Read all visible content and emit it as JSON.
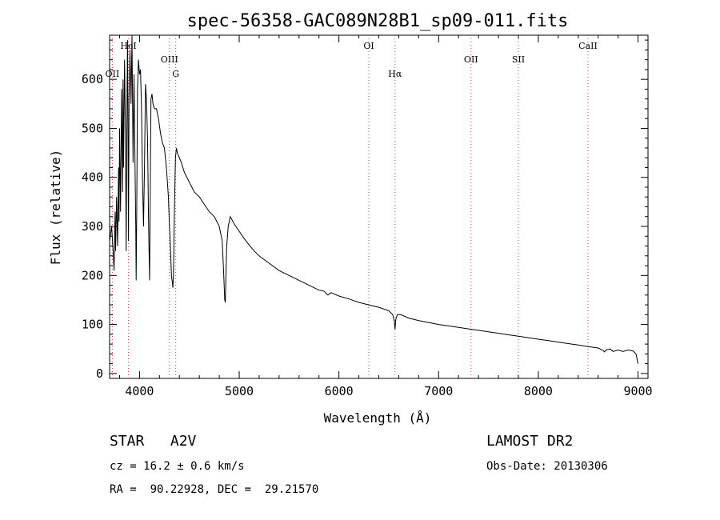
{
  "chart_data": {
    "type": "line",
    "title": "spec-56358-GAC089N28B1_sp09-011.fits",
    "xlabel": "Wavelength (Å)",
    "ylabel": "Flux (relative)",
    "xlim": [
      3700,
      9100
    ],
    "ylim": [
      -10,
      690
    ],
    "xticks": [
      4000,
      5000,
      6000,
      7000,
      8000,
      9000
    ],
    "yticks": [
      0,
      100,
      200,
      300,
      400,
      500,
      600
    ],
    "grid": false,
    "series": [
      {
        "color": "#000000",
        "x": [
          3700,
          3720,
          3735,
          3745,
          3755,
          3760,
          3770,
          3780,
          3790,
          3795,
          3800,
          3810,
          3820,
          3830,
          3835,
          3840,
          3850,
          3860,
          3866,
          3875,
          3880,
          3885,
          3889,
          3895,
          3905,
          3915,
          3925,
          3935,
          3945,
          3955,
          3962,
          3966,
          3972,
          3980,
          3990,
          4000,
          4010,
          4020,
          4030,
          4040,
          4050,
          4060,
          4070,
          4080,
          4090,
          4095,
          4101,
          4105,
          4115,
          4125,
          4135,
          4150,
          4170,
          4190,
          4210,
          4230,
          4250,
          4270,
          4290,
          4300,
          4310,
          4320,
          4330,
          4335,
          4340,
          4345,
          4350,
          4360,
          4370,
          4380,
          4400,
          4420,
          4450,
          4500,
          4550,
          4600,
          4650,
          4700,
          4750,
          4800,
          4830,
          4845,
          4855,
          4861,
          4867,
          4875,
          4890,
          4910,
          4950,
          5000,
          5050,
          5100,
          5150,
          5200,
          5300,
          5400,
          5500,
          5600,
          5700,
          5800,
          5850,
          5890,
          5920,
          6000,
          6100,
          6200,
          6300,
          6400,
          6500,
          6540,
          6555,
          6563,
          6570,
          6585,
          6620,
          6700,
          6800,
          6900,
          7000,
          7100,
          7200,
          7300,
          7400,
          7500,
          7600,
          7700,
          7800,
          7900,
          8000,
          8100,
          8200,
          8300,
          8400,
          8500,
          8600,
          8650,
          8662,
          8680,
          8720,
          8750,
          8800,
          8850,
          8900,
          8950,
          8980,
          8990,
          9000
        ],
        "y": [
          270,
          300,
          250,
          210,
          330,
          250,
          360,
          260,
          420,
          310,
          500,
          330,
          580,
          370,
          600,
          420,
          640,
          480,
          250,
          560,
          680,
          470,
          270,
          560,
          660,
          550,
          690,
          430,
          610,
          420,
          300,
          190,
          330,
          580,
          640,
          610,
          620,
          540,
          400,
          300,
          420,
          590,
          560,
          480,
          320,
          260,
          190,
          300,
          560,
          570,
          550,
          540,
          540,
          520,
          490,
          470,
          460,
          420,
          360,
          300,
          260,
          200,
          185,
          175,
          200,
          260,
          330,
          440,
          460,
          450,
          440,
          430,
          410,
          390,
          370,
          360,
          345,
          330,
          320,
          300,
          270,
          200,
          150,
          145,
          200,
          260,
          300,
          320,
          305,
          290,
          275,
          262,
          250,
          240,
          225,
          210,
          200,
          190,
          180,
          170,
          168,
          160,
          165,
          158,
          152,
          145,
          140,
          135,
          128,
          120,
          108,
          90,
          110,
          120,
          120,
          113,
          108,
          104,
          100,
          97,
          94,
          91,
          88,
          85,
          82,
          79,
          76,
          73,
          70,
          67,
          64,
          61,
          58,
          55,
          52,
          47,
          44,
          48,
          50,
          45,
          48,
          45,
          48,
          46,
          40,
          30,
          20
        ]
      }
    ],
    "spectral_lines": [
      {
        "label": "OII",
        "wavelength": 3727,
        "row": 3
      },
      {
        "label": "HeI",
        "wavelength": 3889,
        "row": 1
      },
      {
        "label": "OIII",
        "wavelength": 4300,
        "row": 2
      },
      {
        "label": "G",
        "wavelength": 4363,
        "row": 3
      },
      {
        "label": "OI",
        "wavelength": 6300,
        "row": 1
      },
      {
        "label": "Hα",
        "wavelength": 6563,
        "row": 3
      },
      {
        "label": "OII",
        "wavelength": 7325,
        "row": 2
      },
      {
        "label": "SII",
        "wavelength": 7800,
        "row": 2
      },
      {
        "label": "CaII",
        "wavelength": 8498,
        "row": 1
      }
    ]
  },
  "info": {
    "class_line": "STAR   A2V",
    "survey": "LAMOST DR2",
    "cz_line": "cz = 16.2 ± 0.6 km/s",
    "obs_date": "Obs-Date: 20130306",
    "radec_line": "RA =  90.22928, DEC =  29.21570"
  },
  "colors": {
    "spectrum": "#000000",
    "line_markers": "#d04040",
    "axes": "#000000",
    "background": "#ffffff"
  }
}
